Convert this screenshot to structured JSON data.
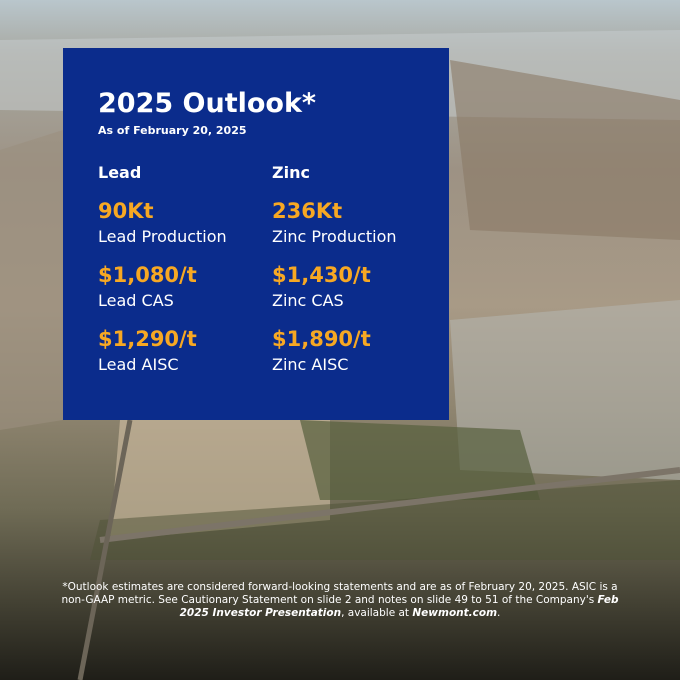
{
  "header": {
    "title": "2025 Outlook*",
    "subtitle": "As of February 20, 2025"
  },
  "columns": [
    {
      "heading": "Lead",
      "metrics": [
        {
          "value": "90Kt",
          "label": "Lead Production"
        },
        {
          "value": "$1,080/t",
          "label": "Lead CAS"
        },
        {
          "value": "$1,290/t",
          "label": "Lead AISC"
        }
      ]
    },
    {
      "heading": "Zinc",
      "metrics": [
        {
          "value": "236Kt",
          "label": "Zinc Production"
        },
        {
          "value": "$1,430/t",
          "label": "Zinc CAS"
        },
        {
          "value": "$1,890/t",
          "label": "Zinc AISC"
        }
      ]
    }
  ],
  "footnote": {
    "text1": "*Outlook estimates are considered forward-looking statements and are as of February 20, 2025. ASIC is a non-GAAP metric. See Cautionary Statement on slide 2 and notes on slide 49 to 51 of the Company's ",
    "emphasis1": "Feb 2025 Investor Presentation",
    "text2": ", available at ",
    "emphasis2": "Newmont.com",
    "text3": "."
  }
}
